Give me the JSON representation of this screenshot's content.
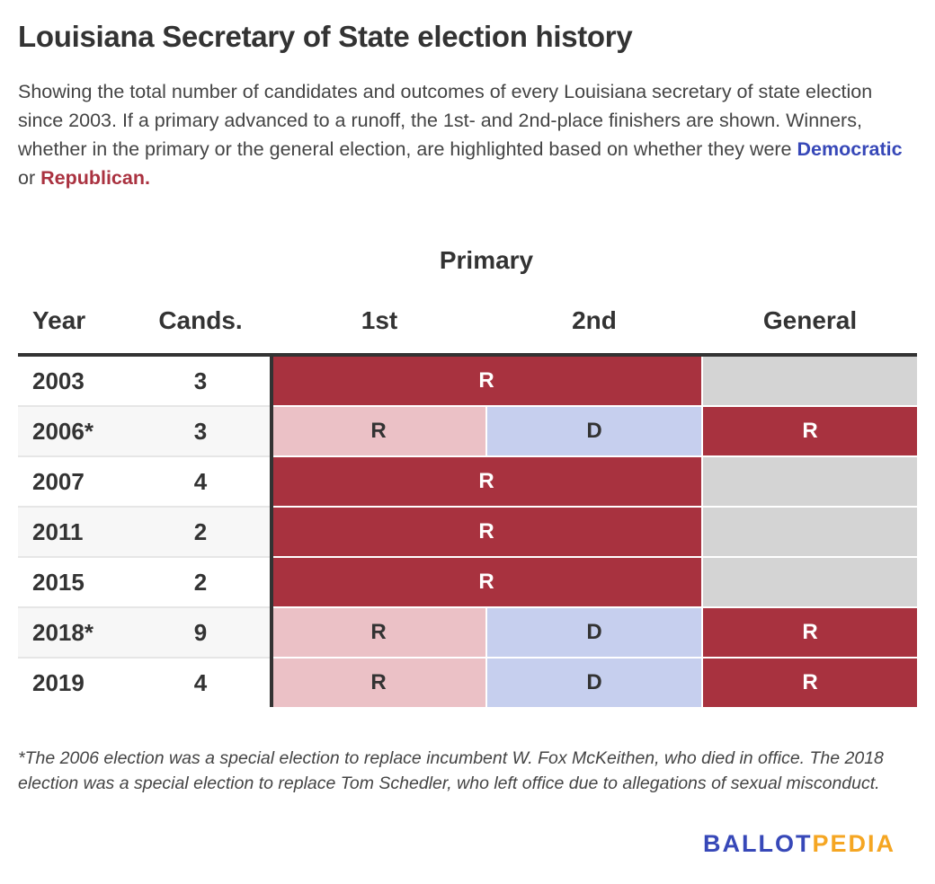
{
  "title": "Louisiana Secretary of State election history",
  "subtitle_pre": "Showing the total number of candidates and outcomes of every Louisiana secretary of state election since 2003. If a primary advanced to a runoff, the 1st- and 2nd-place finishers are shown. Winners, whether in the primary or the general election, are highlighted based on whether they were ",
  "subtitle_dem": "Democratic",
  "subtitle_or": " or ",
  "subtitle_rep": "Republican.",
  "colors": {
    "rep_win": "#a8323f",
    "rep_light": "#ebc1c6",
    "dem_light": "#c6cfee",
    "empty": "#d4d4d4",
    "dem": "#3748b8",
    "rep": "#aa3240"
  },
  "chart_data": {
    "type": "table",
    "group_header": "Primary",
    "columns": [
      "Year",
      "Cands.",
      "1st",
      "2nd",
      "General"
    ],
    "rows": [
      {
        "year": "2003",
        "cands": "3",
        "primary": "R",
        "first": null,
        "second": null,
        "general": null
      },
      {
        "year": "2006*",
        "cands": "3",
        "primary": null,
        "first": "R",
        "second": "D",
        "general": "R"
      },
      {
        "year": "2007",
        "cands": "4",
        "primary": "R",
        "first": null,
        "second": null,
        "general": null
      },
      {
        "year": "2011",
        "cands": "2",
        "primary": "R",
        "first": null,
        "second": null,
        "general": null
      },
      {
        "year": "2015",
        "cands": "2",
        "primary": "R",
        "first": null,
        "second": null,
        "general": null
      },
      {
        "year": "2018*",
        "cands": "9",
        "primary": null,
        "first": "R",
        "second": "D",
        "general": "R"
      },
      {
        "year": "2019",
        "cands": "4",
        "primary": null,
        "first": "R",
        "second": "D",
        "general": "R"
      }
    ]
  },
  "footnote": "*The 2006 election was a special election to replace incumbent W. Fox McKeithen, who died in office. The 2018 election was a special election to replace Tom Schedler, who left office due to allegations of sexual misconduct.",
  "logo": {
    "part1": "BALLOT",
    "part2": "PEDIA",
    "color1": "#3748b8",
    "color2": "#f5a623"
  }
}
